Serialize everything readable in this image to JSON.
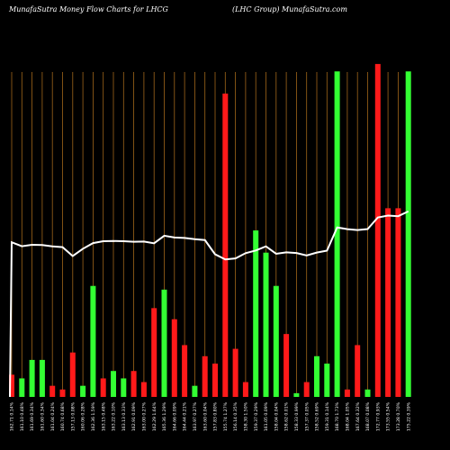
{
  "header": {
    "left": "MunafaSutra  Money Flow  Charts for LHCG",
    "right": "(LHC Group) MunafaSutra.com"
  },
  "colors": {
    "background": "#000000",
    "gridline": "#a0661a",
    "up": "#33ff33",
    "down": "#ff1a1a",
    "price_line": "#ffffff"
  },
  "chart_data": {
    "type": "bar",
    "title": "",
    "xlabel": "",
    "ylabel": "",
    "grid": true,
    "flow_ylim": [
      0,
      100
    ],
    "price_ylim": [
      100,
      250
    ],
    "categories": [
      "162.71 0.14%",
      "161.10 0.48%",
      "161.69 0.34%",
      "161.60 0.34%",
      "161.04 0.24%",
      "160.74 0.68%",
      "157.13 0.08%",
      "160.06 0.28%",
      "162.36 1.59%",
      "163.15 0.48%",
      "163.22 0.10%",
      "163.13 0.33%",
      "162.91 0.09%",
      "163.00 0.27%",
      "162.29 1.64%",
      "165.36 1.29%",
      "164.66 0.09%",
      "164.44 0.21%",
      "163.97 0.27%",
      "163.60 0.04%",
      "157.83 0.80%",
      "155.74 1.27%",
      "156.14 0.35%",
      "158.30 1.50%",
      "159.37 0.29%",
      "161.05 0.09%",
      "158.04 0.04%",
      "158.62 0.01%",
      "158.33 0.99%",
      "157.37 0.05%",
      "158.52 0.69%",
      "159.31 0.14%",
      "168.70 1.73%",
      "168.04 1.05%",
      "167.64 0.32%",
      "168.07 0.08%",
      "172.77 0.93%",
      "173.55 0.54%",
      "173.28 0.70%",
      "175.22 0.39%"
    ],
    "bars": [
      {
        "v": 6,
        "c": "down"
      },
      {
        "v": 5,
        "c": "up"
      },
      {
        "v": 10,
        "c": "up"
      },
      {
        "v": 10,
        "c": "up"
      },
      {
        "v": 3,
        "c": "down"
      },
      {
        "v": 2,
        "c": "down"
      },
      {
        "v": 12,
        "c": "down"
      },
      {
        "v": 3,
        "c": "up"
      },
      {
        "v": 30,
        "c": "up"
      },
      {
        "v": 5,
        "c": "down"
      },
      {
        "v": 7,
        "c": "up"
      },
      {
        "v": 5,
        "c": "up"
      },
      {
        "v": 7,
        "c": "down"
      },
      {
        "v": 4,
        "c": "down"
      },
      {
        "v": 24,
        "c": "down"
      },
      {
        "v": 29,
        "c": "up"
      },
      {
        "v": 21,
        "c": "down"
      },
      {
        "v": 14,
        "c": "down"
      },
      {
        "v": 3,
        "c": "up"
      },
      {
        "v": 11,
        "c": "down"
      },
      {
        "v": 9,
        "c": "down"
      },
      {
        "v": 82,
        "c": "down"
      },
      {
        "v": 13,
        "c": "down"
      },
      {
        "v": 4,
        "c": "down"
      },
      {
        "v": 45,
        "c": "up"
      },
      {
        "v": 39,
        "c": "up"
      },
      {
        "v": 30,
        "c": "up"
      },
      {
        "v": 17,
        "c": "down"
      },
      {
        "v": 1,
        "c": "up"
      },
      {
        "v": 4,
        "c": "down"
      },
      {
        "v": 11,
        "c": "up"
      },
      {
        "v": 9,
        "c": "up"
      },
      {
        "v": 88,
        "c": "up"
      },
      {
        "v": 2,
        "c": "down"
      },
      {
        "v": 14,
        "c": "down"
      },
      {
        "v": 2,
        "c": "up"
      },
      {
        "v": 90,
        "c": "down"
      },
      {
        "v": 51,
        "c": "down"
      },
      {
        "v": 51,
        "c": "down"
      },
      {
        "v": 88,
        "c": "up"
      }
    ],
    "price": [
      162.71,
      161.1,
      161.69,
      161.6,
      161.04,
      160.74,
      157.13,
      160.06,
      162.36,
      163.15,
      163.22,
      163.13,
      162.91,
      163.0,
      162.29,
      165.36,
      164.66,
      164.44,
      163.97,
      163.6,
      157.83,
      155.74,
      156.14,
      158.3,
      159.37,
      161.05,
      158.04,
      158.62,
      158.33,
      157.37,
      158.52,
      159.31,
      168.7,
      168.04,
      167.64,
      168.07,
      172.77,
      173.55,
      173.28,
      175.22
    ]
  }
}
